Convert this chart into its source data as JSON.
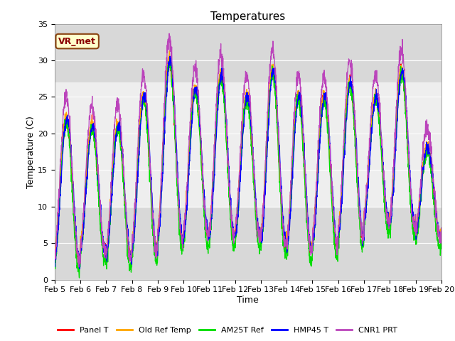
{
  "title": "Temperatures",
  "xlabel": "Time",
  "ylabel": "Temperature (C)",
  "ylim": [
    0,
    35
  ],
  "yticks": [
    0,
    5,
    10,
    15,
    20,
    25,
    30,
    35
  ],
  "xtick_labels": [
    "Feb 5",
    "Feb 6",
    "Feb 7",
    "Feb 8",
    "Feb 9",
    "Feb 10",
    "Feb 11",
    "Feb 12",
    "Feb 13",
    "Feb 14",
    "Feb 15",
    "Feb 16",
    "Feb 17",
    "Feb 18",
    "Feb 19",
    "Feb 20"
  ],
  "shaded_region": [
    10,
    27
  ],
  "annotation_text": "VR_met",
  "series_colors": [
    "#ff0000",
    "#ffa500",
    "#00dd00",
    "#0000ff",
    "#bb44bb"
  ],
  "series_labels": [
    "Panel T",
    "Old Ref Temp",
    "AM25T Ref",
    "HMP45 T",
    "CNR1 PRT"
  ],
  "background_color": "#ffffff",
  "plot_bg_color": "#d8d8d8",
  "shaded_color": "#eeeeee",
  "title_fontsize": 11,
  "axis_label_fontsize": 9,
  "tick_fontsize": 8,
  "n_days": 15,
  "pts_per_day": 144,
  "day_peaks": [
    22,
    21,
    21,
    25,
    30.0,
    26,
    28,
    25,
    28.5,
    25,
    25,
    27,
    25,
    28.5,
    18
  ],
  "day_troughs": [
    2.5,
    4,
    3,
    4,
    5.5,
    6,
    6,
    6,
    5,
    4,
    5,
    6,
    8,
    7.5,
    6
  ],
  "peak_phase": 0.58,
  "trough_phase": 0.25
}
